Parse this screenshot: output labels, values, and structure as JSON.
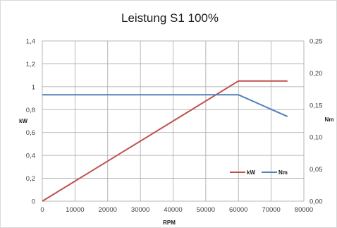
{
  "chart_data": {
    "type": "line",
    "title": "Leistung S1 100%",
    "xlabel": "RPM",
    "ylabel": "kW",
    "y2label": "Nm",
    "xlim": [
      0,
      80000
    ],
    "ylim": [
      0,
      1.4
    ],
    "y2lim": [
      0,
      0.25
    ],
    "x_ticks": [
      "0",
      "10000",
      "20000",
      "30000",
      "40000",
      "50000",
      "60000",
      "70000",
      "80000"
    ],
    "y_ticks": [
      "0",
      "0,2",
      "0,4",
      "0,6",
      "0,8",
      "1",
      "1,2",
      "1,4"
    ],
    "y2_ticks": [
      "0,00",
      "0,05",
      "0,10",
      "0,15",
      "0,20",
      "0,25"
    ],
    "grid": true,
    "legend_position": "bottom-right",
    "series": [
      {
        "name": "kW",
        "axis": "left",
        "color": "#c0504d",
        "x": [
          0,
          60000,
          75000
        ],
        "y": [
          0,
          1.05,
          1.05
        ]
      },
      {
        "name": "Nm",
        "axis": "right",
        "color": "#4f81bd",
        "x": [
          0,
          60000,
          75000
        ],
        "y": [
          0.166,
          0.166,
          0.132
        ]
      }
    ]
  }
}
